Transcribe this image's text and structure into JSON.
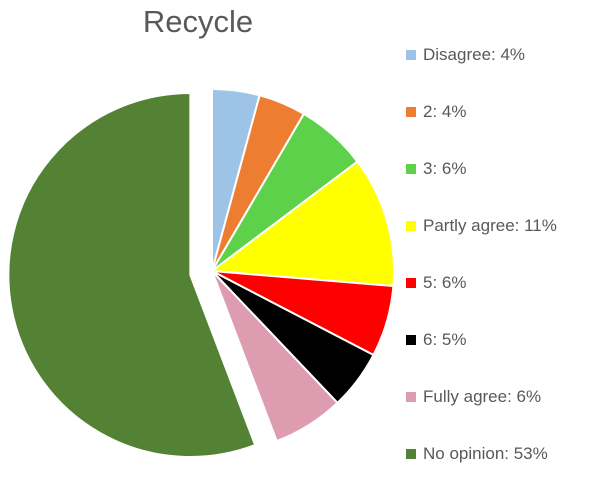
{
  "chart_data": {
    "type": "pie",
    "title": "Recycle",
    "legend_position": "right",
    "exploded_slices": [
      "No opinion"
    ],
    "slices": [
      {
        "label": "Disagree",
        "value": 4,
        "color": "#9dc3e6"
      },
      {
        "label": "2",
        "value": 4,
        "color": "#ed7d31"
      },
      {
        "label": "3",
        "value": 6,
        "color": "#5dd14a"
      },
      {
        "label": "Partly agree",
        "value": 11,
        "color": "#ffff00"
      },
      {
        "label": "5",
        "value": 6,
        "color": "#ff0000"
      },
      {
        "label": "6",
        "value": 5,
        "color": "#000000"
      },
      {
        "label": "Fully agree",
        "value": 6,
        "color": "#dd9cb0"
      },
      {
        "label": "No opinion",
        "value": 53,
        "color": "#548235"
      }
    ],
    "legend_labels": [
      "Disagree: 4%",
      "2: 4%",
      "3: 6%",
      "Partly agree: 11%",
      "5: 6%",
      "6: 5%",
      "Fully agree: 6%",
      "No opinion: 53%"
    ]
  }
}
